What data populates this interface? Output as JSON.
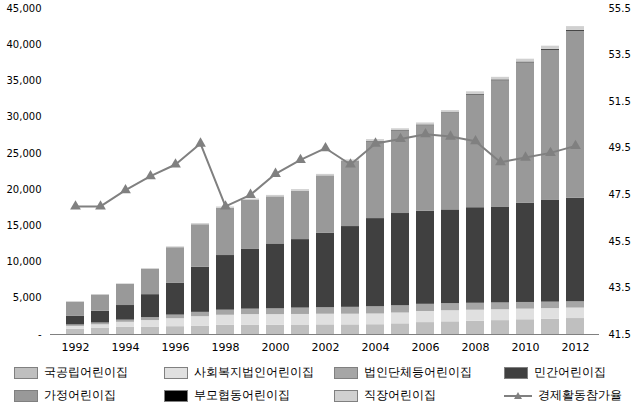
{
  "chart_data": {
    "type": "bar",
    "stacked": true,
    "grid": false,
    "categories": [
      1992,
      null,
      1994,
      null,
      1996,
      null,
      1998,
      null,
      2000,
      null,
      2002,
      null,
      2004,
      null,
      2006,
      null,
      2008,
      null,
      2010,
      null,
      2012
    ],
    "ylim": [
      0,
      45000
    ],
    "yticks": [
      {
        "value": 0,
        "label": "-"
      },
      {
        "value": 5000,
        "label": "5,000"
      },
      {
        "value": 10000,
        "label": "10,000"
      },
      {
        "value": 15000,
        "label": "15,000"
      },
      {
        "value": 20000,
        "label": "20,000"
      },
      {
        "value": 25000,
        "label": "25,000"
      },
      {
        "value": 30000,
        "label": "30,000"
      },
      {
        "value": 35000,
        "label": "35,000"
      },
      {
        "value": 40000,
        "label": "40,000"
      },
      {
        "value": 45000,
        "label": "45,000"
      }
    ],
    "y2lim": [
      41.5,
      55.5
    ],
    "y2ticks": [
      41.5,
      43.5,
      45.5,
      47.5,
      49.5,
      51.5,
      53.5,
      55.5
    ],
    "series": [
      {
        "name": "국공립어린이집",
        "type": "bar",
        "color": "#bfbfbf",
        "values": [
          720,
          837,
          983,
          1029,
          1079,
          1158,
          1258,
          1300,
          1295,
          1306,
          1330,
          1329,
          1349,
          1473,
          1643,
          1748,
          1826,
          1917,
          2034,
          2116,
          2203
        ]
      },
      {
        "name": "사회복지법인어린이집",
        "type": "bar",
        "color": "#e0e0e0",
        "values": [
          400,
          500,
          700,
          900,
          1100,
          1300,
          1400,
          1450,
          1450,
          1461,
          1469,
          1473,
          1482,
          1495,
          1535,
          1536,
          1526,
          1502,
          1468,
          1462,
          1444
        ]
      },
      {
        "name": "법인단체등어린이집",
        "type": "bar",
        "color": "#a6a6a6",
        "values": [
          200,
          250,
          300,
          400,
          500,
          600,
          700,
          750,
          800,
          880,
          900,
          950,
          1000,
          1000,
          990,
          980,
          960,
          940,
          920,
          890,
          870
        ]
      },
      {
        "name": "민간어린이집",
        "type": "bar",
        "color": "#404040",
        "values": [
          1180,
          1613,
          2017,
          3171,
          4421,
          6242,
          7542,
          8300,
          8955,
          9453,
          10301,
          11148,
          12169,
          12732,
          12832,
          12936,
          13188,
          13241,
          13678,
          14032,
          14283
        ]
      },
      {
        "name": "가정어린이집",
        "type": "bar",
        "color": "#999999",
        "values": [
          1970,
          2250,
          2920,
          3510,
          4880,
          5850,
          6520,
          6700,
          6500,
          6690,
          7900,
          8980,
          10610,
          11380,
          11840,
          13330,
          15570,
          17440,
          19410,
          20750,
          23070
        ]
      },
      {
        "name": "부모협동어린이집",
        "type": "bar",
        "color": "#000000",
        "values": [
          0,
          0,
          0,
          0,
          0,
          0,
          0,
          0,
          0,
          0,
          0,
          0,
          50,
          60,
          70,
          70,
          80,
          90,
          90,
          100,
          110
        ]
      },
      {
        "name": "직장어린이집",
        "type": "bar",
        "color": "#d0d0d0",
        "values": [
          30,
          50,
          80,
          90,
          120,
          150,
          180,
          200,
          200,
          210,
          200,
          220,
          240,
          260,
          290,
          300,
          350,
          370,
          400,
          450,
          520
        ]
      },
      {
        "name": "경제활동참가율",
        "type": "line",
        "axis": "y2",
        "color": "#808080",
        "marker": "triangle",
        "values": [
          47.0,
          47.0,
          47.7,
          48.3,
          48.8,
          49.7,
          47.0,
          47.5,
          48.4,
          49.0,
          49.5,
          48.8,
          49.7,
          49.9,
          50.1,
          50.0,
          49.8,
          48.9,
          49.1,
          49.3,
          49.6
        ]
      }
    ]
  }
}
